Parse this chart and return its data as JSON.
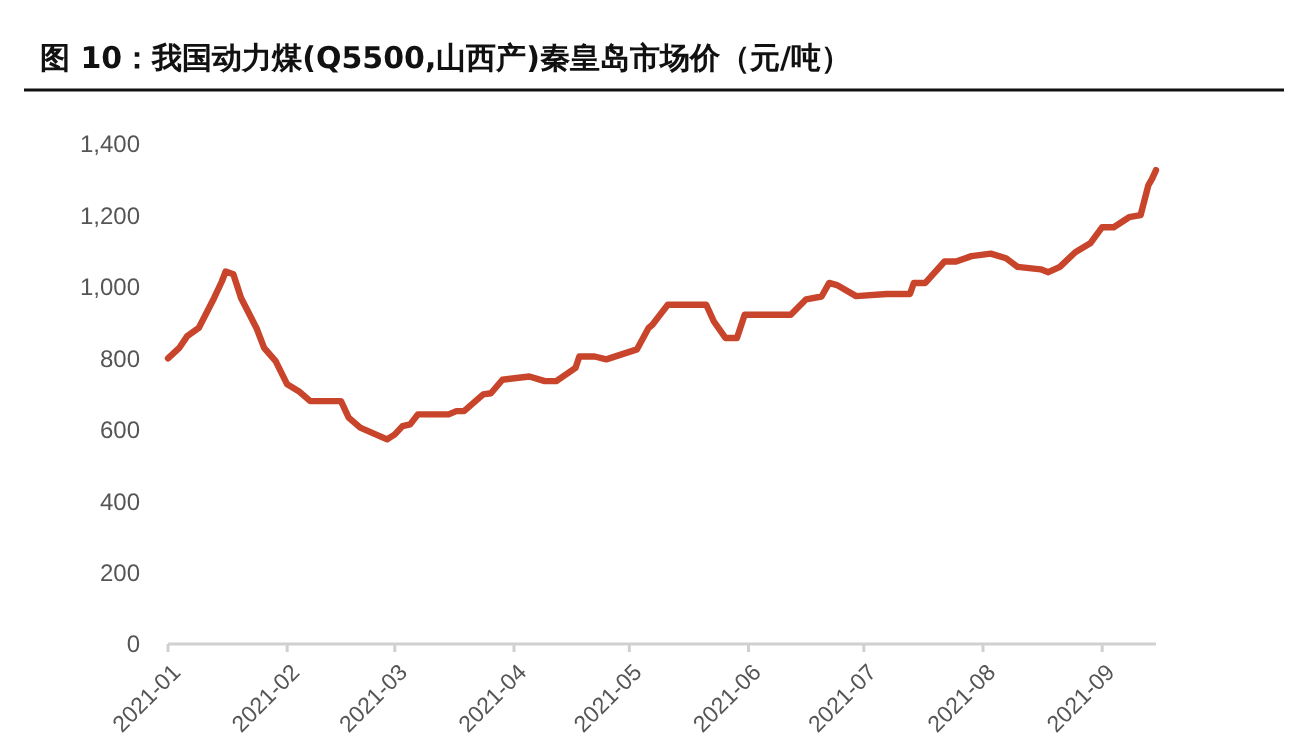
{
  "chart_data": {
    "type": "line",
    "title": "图 10：我国动力煤(Q5500,山西产)秦皇岛市场价（元/吨）",
    "xlim": [
      "2021-01-01",
      "2021-09-15"
    ],
    "xticks": [
      {
        "value": "2021-01-01",
        "label": "2021-01"
      },
      {
        "value": "2021-02-01",
        "label": "2021-02"
      },
      {
        "value": "2021-03-01",
        "label": "2021-03"
      },
      {
        "value": "2021-04-01",
        "label": "2021-04"
      },
      {
        "value": "2021-05-01",
        "label": "2021-05"
      },
      {
        "value": "2021-06-01",
        "label": "2021-06"
      },
      {
        "value": "2021-07-01",
        "label": "2021-07"
      },
      {
        "value": "2021-08-01",
        "label": "2021-08"
      },
      {
        "value": "2021-09-01",
        "label": "2021-09"
      }
    ],
    "ylim": [
      0,
      1400
    ],
    "yticks": [
      0,
      200,
      400,
      600,
      800,
      {
        "value": 1000,
        "label": "1,000"
      },
      {
        "value": 1200,
        "label": "1,200"
      },
      {
        "value": 1400,
        "label": "1,400"
      }
    ],
    "grid": false,
    "marker": "none",
    "line_style": "solid",
    "series": [
      {
        "color": "#c8442a",
        "x": [
          "2021-01-01",
          "2021-01-04",
          "2021-01-06",
          "2021-01-09",
          "2021-01-13",
          "2021-01-15",
          "2021-01-16",
          "2021-01-18",
          "2021-01-20",
          "2021-01-24",
          "2021-01-26",
          "2021-01-29",
          "2021-02-01",
          "2021-02-04",
          "2021-02-07",
          "2021-02-15",
          "2021-02-17",
          "2021-02-20",
          "2021-02-24",
          "2021-02-27",
          "2021-03-01",
          "2021-03-03",
          "2021-03-05",
          "2021-03-07",
          "2021-03-15",
          "2021-03-17",
          "2021-03-19",
          "2021-03-24",
          "2021-03-26",
          "2021-03-29",
          "2021-04-05",
          "2021-04-09",
          "2021-04-12",
          "2021-04-17",
          "2021-04-18",
          "2021-04-22",
          "2021-04-25",
          "2021-05-03",
          "2021-05-06",
          "2021-05-07",
          "2021-05-11",
          "2021-05-21",
          "2021-05-23",
          "2021-05-26",
          "2021-05-29",
          "2021-05-31",
          "2021-06-12",
          "2021-06-16",
          "2021-06-20",
          "2021-06-22",
          "2021-06-24",
          "2021-06-29",
          "2021-07-07",
          "2021-07-13",
          "2021-07-14",
          "2021-07-17",
          "2021-07-22",
          "2021-07-25",
          "2021-07-29",
          "2021-08-03",
          "2021-08-07",
          "2021-08-10",
          "2021-08-16",
          "2021-08-18",
          "2021-08-21",
          "2021-08-25",
          "2021-08-29",
          "2021-09-01",
          "2021-09-04",
          "2021-09-08",
          "2021-09-11",
          "2021-09-13",
          "2021-09-14",
          "2021-09-15"
        ],
        "values": [
          800,
          830,
          862,
          885,
          969,
          1015,
          1043,
          1035,
          969,
          885,
          829,
          792,
          727,
          708,
          680,
          680,
          634,
          606,
          587,
          573,
          587,
          610,
          615,
          643,
          643,
          652,
          652,
          699,
          702,
          740,
          749,
          736,
          736,
          773,
          805,
          805,
          797,
          825,
          885,
          894,
          950,
          950,
          903,
          857,
          857,
          922,
          922,
          965,
          973,
          1011,
          1005,
          974,
          980,
          980,
          1011,
          1011,
          1071,
          1071,
          1086,
          1093,
          1080,
          1056,
          1049,
          1041,
          1056,
          1097,
          1123,
          1167,
          1167,
          1195,
          1201,
          1284,
          1303,
          1327
        ]
      }
    ]
  }
}
